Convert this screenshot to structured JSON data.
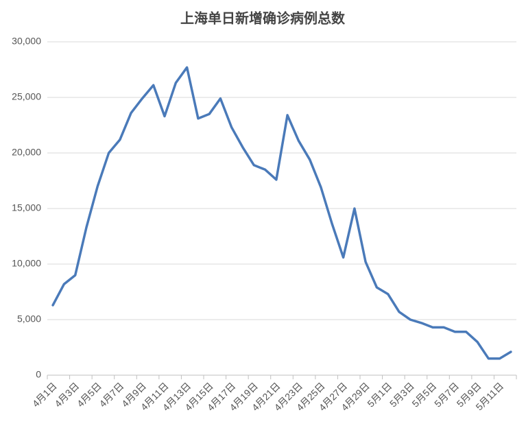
{
  "chart_data": {
    "type": "line",
    "title": "上海单日新增确诊病例总数",
    "categories": [
      "4月1日",
      null,
      "4月3日",
      null,
      "4月5日",
      null,
      "4月7日",
      null,
      "4月9日",
      null,
      "4月11日",
      null,
      "4月13日",
      null,
      "4月15日",
      null,
      "4月17日",
      null,
      "4月19日",
      null,
      "4月21日",
      null,
      "4月23日",
      null,
      "4月25日",
      null,
      "4月27日",
      null,
      "4月29日",
      null,
      "5月1日",
      null,
      "5月3日",
      null,
      "5月5日",
      null,
      "5月7日",
      null,
      "5月9日",
      null,
      "5月11日",
      null
    ],
    "values": [
      6300,
      8200,
      9000,
      13300,
      17000,
      20000,
      21200,
      23600,
      24900,
      26100,
      23300,
      26300,
      27700,
      23100,
      23500,
      24900,
      22300,
      20500,
      18900,
      18500,
      17600,
      23400,
      21100,
      19400,
      16900,
      13600,
      10600,
      15000,
      10200,
      7900,
      7300,
      5700,
      5000,
      4700,
      4300,
      4300,
      3900,
      3900,
      3000,
      1500,
      1500,
      2100
    ],
    "color": "#4a7ab9",
    "ylim": [
      0,
      30000
    ],
    "yticks": [
      0,
      {
        "value": 5000,
        "label": "5,000"
      },
      {
        "value": 10000,
        "label": "10,000"
      },
      {
        "value": 15000,
        "label": "15,000"
      },
      {
        "value": 20000,
        "label": "20,000"
      },
      {
        "value": 25000,
        "label": "25,000"
      },
      {
        "value": 30000,
        "label": "30,000"
      }
    ],
    "grid": true
  }
}
